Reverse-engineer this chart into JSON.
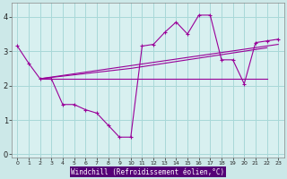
{
  "bg_color": "#cce8e8",
  "plot_bg_color": "#d8f0f0",
  "grid_color": "#a8d8d8",
  "line_color": "#990099",
  "axis_label_bg": "#6600aa",
  "xlabel": "Windchill (Refroidissement éolien,°C)",
  "xlim": [
    -0.5,
    23.5
  ],
  "ylim": [
    -0.1,
    4.4
  ],
  "yticks": [
    0,
    1,
    2,
    3,
    4
  ],
  "xticks": [
    0,
    1,
    2,
    3,
    4,
    5,
    6,
    7,
    8,
    9,
    10,
    11,
    12,
    13,
    14,
    15,
    16,
    17,
    18,
    19,
    20,
    21,
    22,
    23
  ],
  "series1_x": [
    0,
    1,
    2,
    3,
    4,
    5,
    6,
    7,
    8,
    9,
    10,
    11,
    12,
    13,
    14,
    15,
    16,
    17,
    18,
    19,
    20,
    21,
    22,
    23
  ],
  "series1_y": [
    3.15,
    2.65,
    2.2,
    2.2,
    1.45,
    1.45,
    1.3,
    1.2,
    0.85,
    0.5,
    0.5,
    3.15,
    3.2,
    3.55,
    3.85,
    3.5,
    4.05,
    4.05,
    2.75,
    2.75,
    2.05,
    3.25,
    3.3,
    3.35
  ],
  "series2_x": [
    2,
    22
  ],
  "series2_y": [
    2.2,
    2.2
  ],
  "series3_x": [
    2,
    23
  ],
  "series3_y": [
    2.2,
    3.2
  ],
  "series4_x": [
    2,
    10,
    22
  ],
  "series4_y": [
    2.2,
    2.5,
    3.1
  ]
}
